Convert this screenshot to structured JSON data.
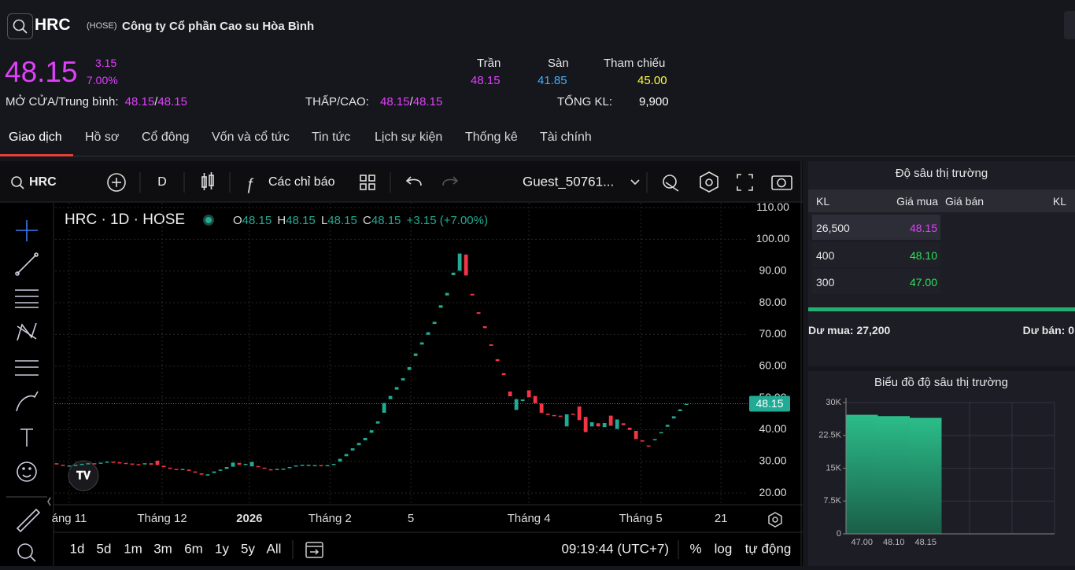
{
  "header": {
    "ticker": "HRC",
    "exchange": "(HOSE)",
    "company": "Công ty Cổ phần Cao su Hòa Bình"
  },
  "quote": {
    "price": "48.15",
    "change": "3.15",
    "change_percent": "7.00%",
    "ceiling": {
      "label": "Trần",
      "value": "48.15"
    },
    "floor": {
      "label": "Sàn",
      "value": "41.85"
    },
    "reference": {
      "label": "Tham chiếu",
      "value": "45.00"
    },
    "open_avg": {
      "label": "MỞ CỬA/Trung bình:",
      "open": "48.15",
      "separator": "/",
      "avg": "48.15"
    },
    "low_high": {
      "label": "THẤP/CAO:",
      "low": "48.15",
      "separator": "/",
      "high": "48.15"
    },
    "total_volume": {
      "label": "TỔNG KL:",
      "value": "9,900"
    }
  },
  "tabs": [
    "Giao dịch",
    "Hồ sơ",
    "Cổ đông",
    "Vốn và cổ tức",
    "Tin tức",
    "Lịch sự kiện",
    "Thống kê",
    "Tài chính"
  ],
  "toolbar": {
    "symbol": "HRC",
    "interval": "D",
    "indicators": "Các chỉ báo",
    "user": "Guest_50761..."
  },
  "chart_data": {
    "type": "candlestick",
    "legend": {
      "title": "HRC · 1D · HOSE",
      "open_label": "O",
      "open": "48.15",
      "high_label": "H",
      "high": "48.15",
      "low_label": "L",
      "low": "48.15",
      "close_label": "C",
      "close": "48.15",
      "change": "+3.15 (+7.00%)"
    },
    "open": [
      29.4,
      28.9,
      28.5,
      28.7,
      28.9,
      29.2,
      29.4,
      29.3,
      29.6,
      29.9,
      29.7,
      29.5,
      29.3,
      29.1,
      29.0,
      29.4,
      30.2,
      28.6,
      28.0,
      27.6,
      27.3,
      27.4,
      26.8,
      26.2,
      25.5,
      26.3,
      27.0,
      27.6,
      28.3,
      29.5,
      28.9,
      28.4,
      28.5,
      28.0,
      27.5,
      27.3,
      27.5,
      27.9,
      28.4,
      28.8,
      28.8,
      28.6,
      28.8,
      28.6,
      28.9,
      29.9,
      31.6,
      33.4,
      35.1,
      36.6,
      39.0,
      41.9,
      45.3,
      49.6,
      52.6,
      55.5,
      58.8,
      63.2,
      66.8,
      69.9,
      73.3,
      78.4,
      82.3,
      88.7,
      90.1,
      95.2,
      82.8,
      77.0,
      72.6,
      66.9,
      62.2,
      57.8,
      52.0,
      46.2,
      49.0,
      52.4,
      50.6,
      48.2,
      45.0,
      44.6,
      44.4,
      41.0,
      45.0,
      47.3,
      44.0,
      41.0,
      42.0,
      40.8,
      44.4,
      40.2,
      42.0,
      40.6,
      39.6,
      36.6,
      35.0,
      36.6,
      38.8,
      40.9,
      43.5,
      45.8,
      47.9
    ],
    "close": [
      29.0,
      28.7,
      28.7,
      28.9,
      29.2,
      29.4,
      29.3,
      29.6,
      29.9,
      29.7,
      29.5,
      29.3,
      29.1,
      29.0,
      29.4,
      28.9,
      28.8,
      28.2,
      27.6,
      27.3,
      27.6,
      27.0,
      26.4,
      25.8,
      25.9,
      26.8,
      27.4,
      28.2,
      29.6,
      28.9,
      29.2,
      29.8,
      28.2,
      27.7,
      27.3,
      27.6,
      27.7,
      28.2,
      28.7,
      28.9,
      28.9,
      28.8,
      28.7,
      28.8,
      29.2,
      30.8,
      32.3,
      34.1,
      35.8,
      37.4,
      39.8,
      42.6,
      48.4,
      50.6,
      53.4,
      56.2,
      59.7,
      64.0,
      67.5,
      70.7,
      74.0,
      79.2,
      83.1,
      89.5,
      95.5,
      88.6,
      82.3,
      76.5,
      72.0,
      66.4,
      61.6,
      57.2,
      50.5,
      49.6,
      49.5,
      50.2,
      48.3,
      45.3,
      44.6,
      44.3,
      44.0,
      44.8,
      44.7,
      43.0,
      39.2,
      42.3,
      41.0,
      42.1,
      41.2,
      43.2,
      41.4,
      39.9,
      37.0,
      36.4,
      34.7,
      37.0,
      39.2,
      41.5,
      44.2,
      46.4,
      48.15
    ],
    "up_color": "#22ab94",
    "down_color": "#f23645",
    "xlim": [
      -0.25,
      109.1
    ],
    "xticks": [
      {
        "value": 2,
        "label": "áng 11"
      },
      {
        "value": 16.75,
        "label": "Tháng 12"
      },
      {
        "value": 30.6,
        "label": "2026"
      },
      {
        "value": 43.4,
        "label": "Tháng 2"
      },
      {
        "value": 56.25,
        "label": "5"
      },
      {
        "value": 75,
        "label": "Tháng 4"
      },
      {
        "value": 92.75,
        "label": "Tháng 5"
      },
      {
        "value": 105.5,
        "label": "21"
      }
    ],
    "ylim": [
      16.3,
      111.5
    ],
    "yticks": [
      {
        "value": 20,
        "label": "20.00"
      },
      {
        "value": 30,
        "label": "30.00"
      },
      {
        "value": 40,
        "label": "40.00"
      },
      {
        "value": 50,
        "label": "50.00"
      },
      {
        "value": 60,
        "label": "60.00"
      },
      {
        "value": 70,
        "label": "70.00"
      },
      {
        "value": 80,
        "label": "80.00"
      },
      {
        "value": 90,
        "label": "90.00"
      },
      {
        "value": 100,
        "label": "100.00"
      },
      {
        "value": 110,
        "label": "110.00"
      }
    ],
    "grid": true,
    "last_price": {
      "value": 48.15,
      "label": "48.15"
    }
  },
  "range_buttons": [
    "1d",
    "5d",
    "1m",
    "3m",
    "6m",
    "1y",
    "5y",
    "All"
  ],
  "status": {
    "time": "09:19:44 (UTC+7)",
    "percent": "%",
    "log": "log",
    "auto": "tự động"
  },
  "order_book": {
    "title": "Độ sâu thị trường",
    "headers": [
      "KL",
      "Giá mua",
      "Giá bán",
      "KL"
    ],
    "rows": [
      [
        "26,500",
        "48.15"
      ],
      [
        "400",
        "48.10"
      ],
      [
        "300",
        "47.00"
      ]
    ],
    "buy_surplus": "Dư mua: 27,200",
    "sell_surplus": "Dư bán: 0"
  },
  "depth_chart": {
    "type": "bar",
    "title": "Biểu đồ độ sâu thị trường",
    "categories": [
      "47.00",
      "48.10",
      "48.15"
    ],
    "values": [
      27200,
      26900,
      26500
    ],
    "color": "#26a17b",
    "ylim": [
      0,
      30000
    ],
    "yticks": [
      0,
      {
        "value": 7500,
        "label": "7.5K"
      },
      {
        "value": 15000,
        "label": "15K"
      },
      {
        "value": 22500,
        "label": "22.5K"
      },
      {
        "value": 30000,
        "label": "30K"
      }
    ]
  }
}
